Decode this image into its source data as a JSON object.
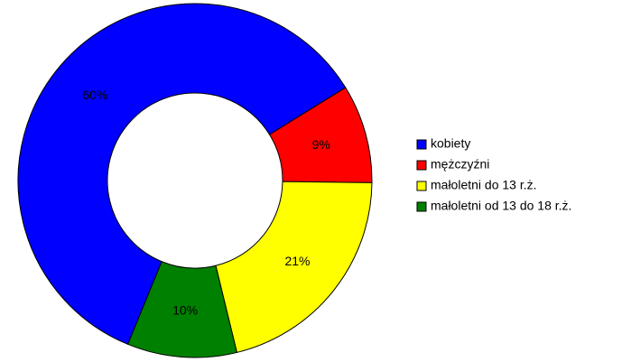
{
  "chart_data": {
    "type": "donut",
    "categories": [
      "kobiety",
      "mężczyźni",
      "małoletni do 13 r.ż.",
      "małoletni od 13 do 18 r.ż."
    ],
    "values": [
      60,
      9,
      21,
      10
    ],
    "value_labels": [
      "60%",
      "9%",
      "21%",
      "10%"
    ],
    "colors": [
      "#0000ff",
      "#ff0000",
      "#ffff00",
      "#008000"
    ],
    "legend": "right"
  }
}
